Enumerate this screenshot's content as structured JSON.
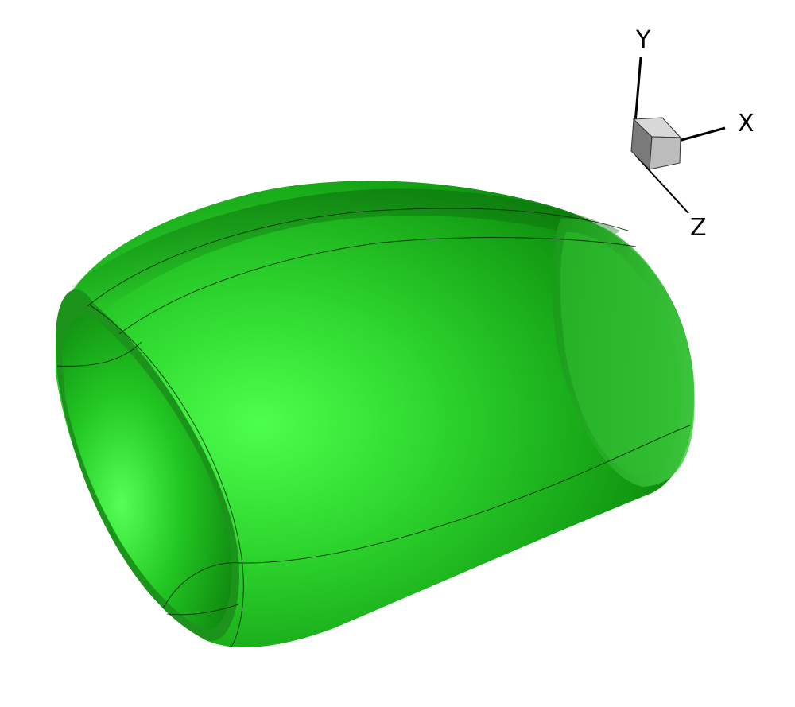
{
  "colors": {
    "background": "#ffffff",
    "surface": "#22b022",
    "surface_light": "#4dff4d",
    "surface_dark": "#0a6a0a",
    "mesh_line": "#0a2a0a",
    "axis": "#000000",
    "cube_light": "#d8d8d8",
    "cube_mid": "#bcbcbc",
    "cube_dark": "#7a7a7a"
  },
  "axis_triad": {
    "x_label": "X",
    "y_label": "Y",
    "z_label": "Z"
  }
}
